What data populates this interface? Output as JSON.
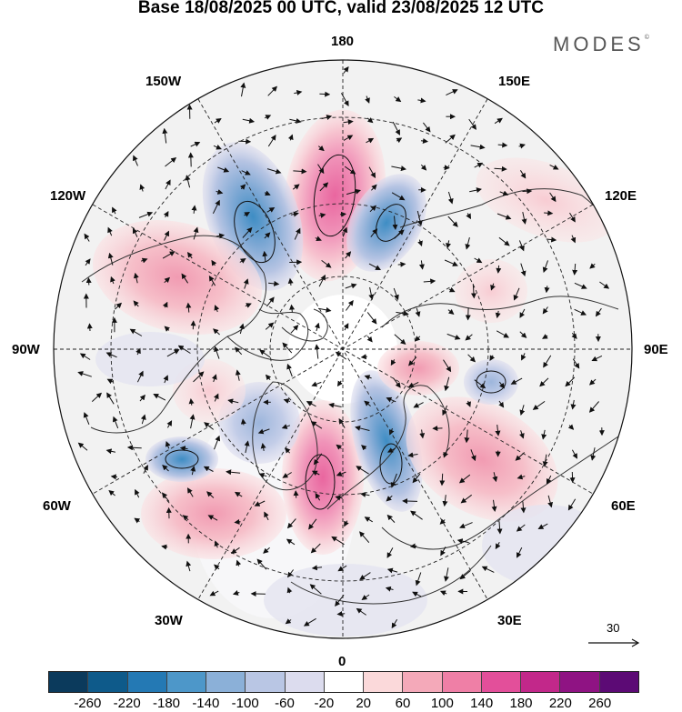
{
  "title": "Base 18/08/2025 00 UTC, valid 23/08/2025 12 UTC",
  "brand": "MODES",
  "brand_mark": "©",
  "longitude_labels": {
    "top": "180",
    "bottom": "0",
    "left": "90W",
    "right": "90E",
    "upper_left_1": "150W",
    "upper_left_2": "120W",
    "upper_right_1": "150E",
    "upper_right_2": "120E",
    "lower_left_1": "60W",
    "lower_left_2": "30W",
    "lower_right_1": "60E",
    "lower_right_2": "30E"
  },
  "vector_scale": {
    "value": "30"
  },
  "colorbar": {
    "colors": [
      "#0b3a5c",
      "#0e5a8a",
      "#2479b4",
      "#4d97c9",
      "#8bb0d8",
      "#b9c6e4",
      "#dcdcee",
      "#ffffff",
      "#fbd9da",
      "#f4a9b9",
      "#ef7fa6",
      "#e34f9a",
      "#c2288a",
      "#8f1383",
      "#5c0a75"
    ],
    "ticks": [
      "-260",
      "-220",
      "-180",
      "-140",
      "-100",
      "-60",
      "-20",
      "20",
      "60",
      "100",
      "140",
      "180",
      "220",
      "260"
    ]
  },
  "anomaly_features": [
    {
      "sign": "positive",
      "strength": 3,
      "region": "north Pacific near 180"
    },
    {
      "sign": "negative",
      "strength": 3,
      "region": "Bering Sea / east Siberia"
    },
    {
      "sign": "negative",
      "strength": 3,
      "region": "north Pacific 150W"
    },
    {
      "sign": "positive",
      "strength": 2,
      "region": "Canada / Alaska"
    },
    {
      "sign": "positive",
      "strength": 3,
      "region": "eastern Atlantic near 0"
    },
    {
      "sign": "negative",
      "strength": 3,
      "region": "Scandinavia"
    },
    {
      "sign": "negative",
      "strength": 2,
      "region": "Greenland"
    },
    {
      "sign": "positive",
      "strength": 2,
      "region": "western Siberia"
    },
    {
      "sign": "positive",
      "strength": 2,
      "region": "North Atlantic 45W"
    },
    {
      "sign": "negative",
      "strength": 2,
      "region": "Labrador Sea"
    },
    {
      "sign": "positive",
      "strength": 1,
      "region": "Barents Sea"
    }
  ]
}
